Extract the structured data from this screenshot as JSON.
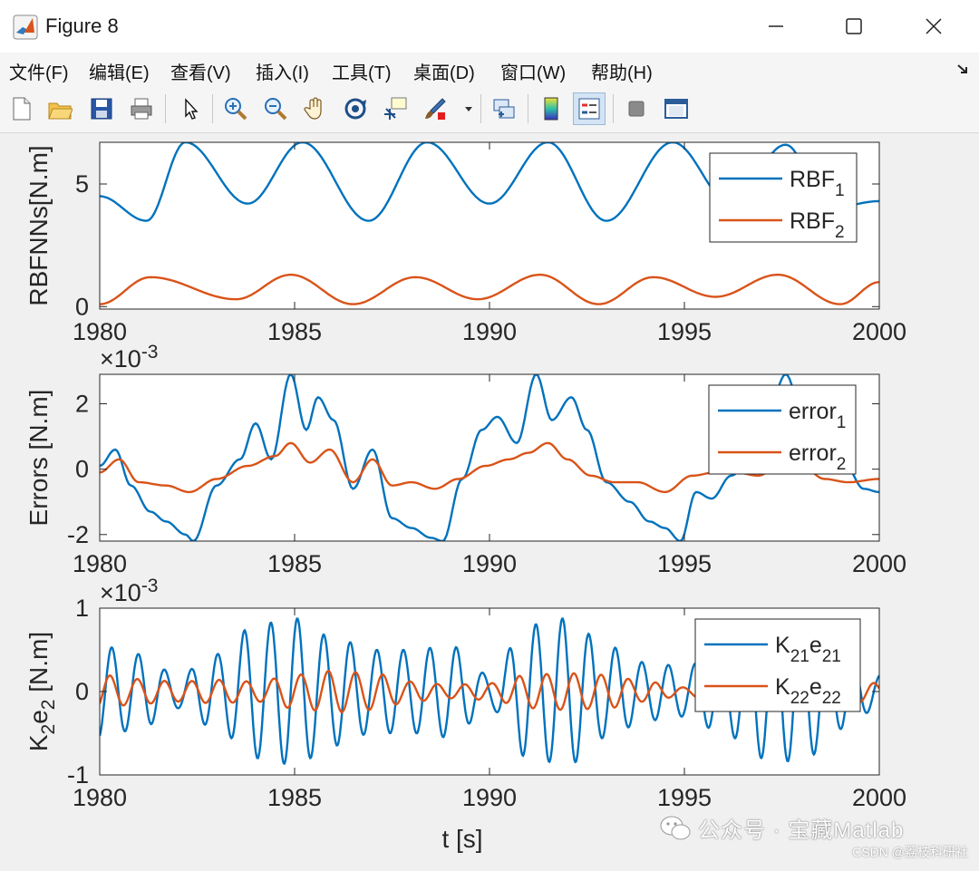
{
  "window": {
    "title": "Figure 8"
  },
  "menu": [
    "文件(F)",
    "编辑(E)",
    "查看(V)",
    "插入(I)",
    "工具(T)",
    "桌面(D)",
    "窗口(W)",
    "帮助(H)"
  ],
  "toolbar": [
    {
      "icon": "new-figure-icon"
    },
    {
      "icon": "open-file-icon"
    },
    {
      "icon": "save-icon"
    },
    {
      "icon": "print-icon"
    },
    {
      "icon": "select-cursor-icon"
    },
    {
      "icon": "zoom-in-icon"
    },
    {
      "icon": "zoom-out-icon"
    },
    {
      "icon": "pan-hand-icon"
    },
    {
      "icon": "rotate-3d-icon"
    },
    {
      "icon": "data-cursor-icon"
    },
    {
      "icon": "brush-icon"
    },
    {
      "icon": "link-plot-icon"
    },
    {
      "icon": "colorbar-icon"
    },
    {
      "icon": "legend-icon"
    },
    {
      "icon": "hide-plot-tools-icon"
    },
    {
      "icon": "show-plot-tools-icon"
    }
  ],
  "colors": {
    "series1": "#0072BD",
    "series2": "#D95319"
  },
  "chart_data": [
    {
      "type": "line",
      "ylabel": "RBFNNs[N.m]",
      "xlim": [
        1980,
        2000
      ],
      "ylim": [
        -0.1,
        6.7
      ],
      "xticks": [
        "1980",
        "1985",
        "1990",
        "1995",
        "2000"
      ],
      "yticks": [
        {
          "v": 0,
          "label": "0"
        },
        {
          "v": 5,
          "label": "5"
        }
      ],
      "exponent": "",
      "legend": [
        {
          "base": "RBF",
          "sub": "1"
        },
        {
          "base": "RBF",
          "sub": "2"
        }
      ],
      "series": [
        {
          "name": "RBF1",
          "samples": {
            "x": [
              1980,
              1981.2,
              1982.2,
              1983.8,
              1985.2,
              1986.9,
              1988.4,
              1990.0,
              1991.5,
              1993.0,
              1994.7,
              1996.2,
              1997.6,
              1998.7,
              2000
            ],
            "y": [
              4.5,
              3.5,
              6.7,
              4.2,
              6.7,
              3.5,
              6.7,
              4.2,
              6.7,
              3.5,
              6.7,
              4.2,
              6.6,
              4.0,
              4.3
            ]
          }
        },
        {
          "name": "RBF2",
          "samples": {
            "x": [
              1980,
              1981.3,
              1983.5,
              1984.9,
              1986.5,
              1988.1,
              1989.7,
              1991.3,
              1992.8,
              1994.2,
              1995.8,
              1997.4,
              1999.0,
              2000
            ],
            "y": [
              0.1,
              1.2,
              0.3,
              1.3,
              0.1,
              1.2,
              0.3,
              1.3,
              0.1,
              1.2,
              0.4,
              1.3,
              0.1,
              1.0
            ]
          }
        }
      ]
    },
    {
      "type": "line",
      "ylabel": "Errors [N.m]",
      "xlim": [
        1980,
        2000
      ],
      "ylim": [
        -2.2,
        2.9
      ],
      "xticks": [
        "1980",
        "1985",
        "1990",
        "1995",
        "2000"
      ],
      "yticks": [
        {
          "v": -2,
          "label": "-2"
        },
        {
          "v": 0,
          "label": "0"
        },
        {
          "v": 2,
          "label": "2"
        }
      ],
      "exponent": "-3",
      "legend": [
        {
          "base": "error",
          "sub": "1"
        },
        {
          "base": "error",
          "sub": "2"
        }
      ],
      "series": [
        {
          "name": "error1",
          "samples": {
            "x": [
              1980,
              1980.4,
              1980.8,
              1981.3,
              1981.7,
              1982.2,
              1982.4,
              1983.0,
              1983.6,
              1984.0,
              1984.4,
              1984.9,
              1985.3,
              1985.6,
              1986.0,
              1986.5,
              1987.0,
              1987.5,
              1988.0,
              1988.5,
              1988.8,
              1989.3,
              1989.8,
              1990.2,
              1990.7,
              1991.2,
              1991.6,
              1992.1,
              1992.5,
              1993.0,
              1993.6,
              1994.1,
              1994.5,
              1994.9,
              1995.3,
              1995.7,
              1996.2,
              1996.7,
              1997.2,
              1997.6,
              1998.1,
              1998.6,
              1999.1,
              1999.6,
              2000
            ],
            "y": [
              0.1,
              0.6,
              -0.5,
              -1.3,
              -1.6,
              -2.0,
              -2.2,
              -0.5,
              0.3,
              1.4,
              0.3,
              2.9,
              1.2,
              2.2,
              1.5,
              -0.6,
              0.6,
              -1.5,
              -1.8,
              -2.1,
              -2.2,
              -0.3,
              1.2,
              1.6,
              0.8,
              2.9,
              1.5,
              2.2,
              1.2,
              -0.4,
              -1.0,
              -1.6,
              -1.8,
              -2.2,
              -0.7,
              -0.9,
              -0.2,
              0.3,
              2.0,
              2.9,
              1.4,
              0.6,
              0.2,
              -0.6,
              -0.7
            ]
          }
        },
        {
          "name": "error2",
          "samples": {
            "x": [
              1980,
              1980.5,
              1981.0,
              1981.7,
              1982.3,
              1983.0,
              1983.8,
              1984.5,
              1984.9,
              1985.4,
              1985.9,
              1986.5,
              1987.0,
              1987.5,
              1988.0,
              1988.6,
              1989.2,
              1989.9,
              1990.5,
              1991.0,
              1991.5,
              1992.0,
              1992.6,
              1993.2,
              1993.8,
              1994.5,
              1995.2,
              1995.8,
              1996.3,
              1996.9,
              1997.5,
              1998.0,
              1998.6,
              1999.2,
              2000
            ],
            "y": [
              -0.1,
              0.3,
              -0.4,
              -0.5,
              -0.7,
              -0.3,
              0.1,
              0.4,
              0.8,
              0.2,
              0.6,
              -0.4,
              0.3,
              -0.5,
              -0.4,
              -0.6,
              -0.3,
              0.1,
              0.3,
              0.5,
              0.8,
              0.3,
              -0.2,
              -0.4,
              -0.4,
              -0.7,
              -0.2,
              -0.1,
              -0.1,
              -0.2,
              0.2,
              0.1,
              -0.3,
              -0.4,
              -0.3
            ]
          }
        }
      ]
    },
    {
      "type": "line",
      "ylabel": "K2e2 [N.m]",
      "xlabel": "t [s]",
      "xlim": [
        1980,
        2000
      ],
      "ylim": [
        -1,
        1
      ],
      "xticks": [
        "1980",
        "1985",
        "1990",
        "1995",
        "2000"
      ],
      "yticks": [
        {
          "v": -1,
          "label": "-1"
        },
        {
          "v": 0,
          "label": "0"
        },
        {
          "v": 1,
          "label": "1"
        }
      ],
      "exponent": "-3",
      "legend": [
        {
          "base": "K",
          "sub": "21",
          "base2": "e",
          "sub2": "21"
        },
        {
          "base": "K",
          "sub": "22",
          "base2": "e",
          "sub2": "22"
        }
      ],
      "series": [
        {
          "name": "K21e21",
          "envelope": {
            "x": [
              1980,
              1981,
              1982,
              1983,
              1984,
              1985,
              1986,
              1987,
              1988,
              1989,
              1990,
              1991,
              1992,
              1993,
              1994,
              1995,
              1996,
              1997,
              1998,
              1999,
              2000
            ],
            "amplitude": [
              0.55,
              0.45,
              0.2,
              0.45,
              0.8,
              0.88,
              0.65,
              0.5,
              0.5,
              0.55,
              0.2,
              0.8,
              0.88,
              0.55,
              0.35,
              0.3,
              0.5,
              0.8,
              0.85,
              0.45,
              0.2
            ]
          },
          "period": 0.68
        },
        {
          "name": "K22e22",
          "envelope": {
            "x": [
              1980,
              1981,
              1982,
              1983,
              1984,
              1985,
              1986,
              1987,
              1988,
              1989,
              1990,
              1991,
              1992,
              1993,
              1994,
              1995,
              1996,
              1997,
              1998,
              1999,
              2000
            ],
            "amplitude": [
              0.2,
              0.15,
              0.12,
              0.14,
              0.12,
              0.2,
              0.25,
              0.22,
              0.12,
              0.08,
              0.1,
              0.2,
              0.22,
              0.2,
              0.12,
              0.05,
              0.12,
              0.15,
              0.18,
              0.15,
              0.1
            ]
          },
          "period": 0.7
        }
      ]
    }
  ],
  "watermark": {
    "text": "公众号 · 宝藏Matlab",
    "sub": "CSDN @荔枝科研社"
  }
}
